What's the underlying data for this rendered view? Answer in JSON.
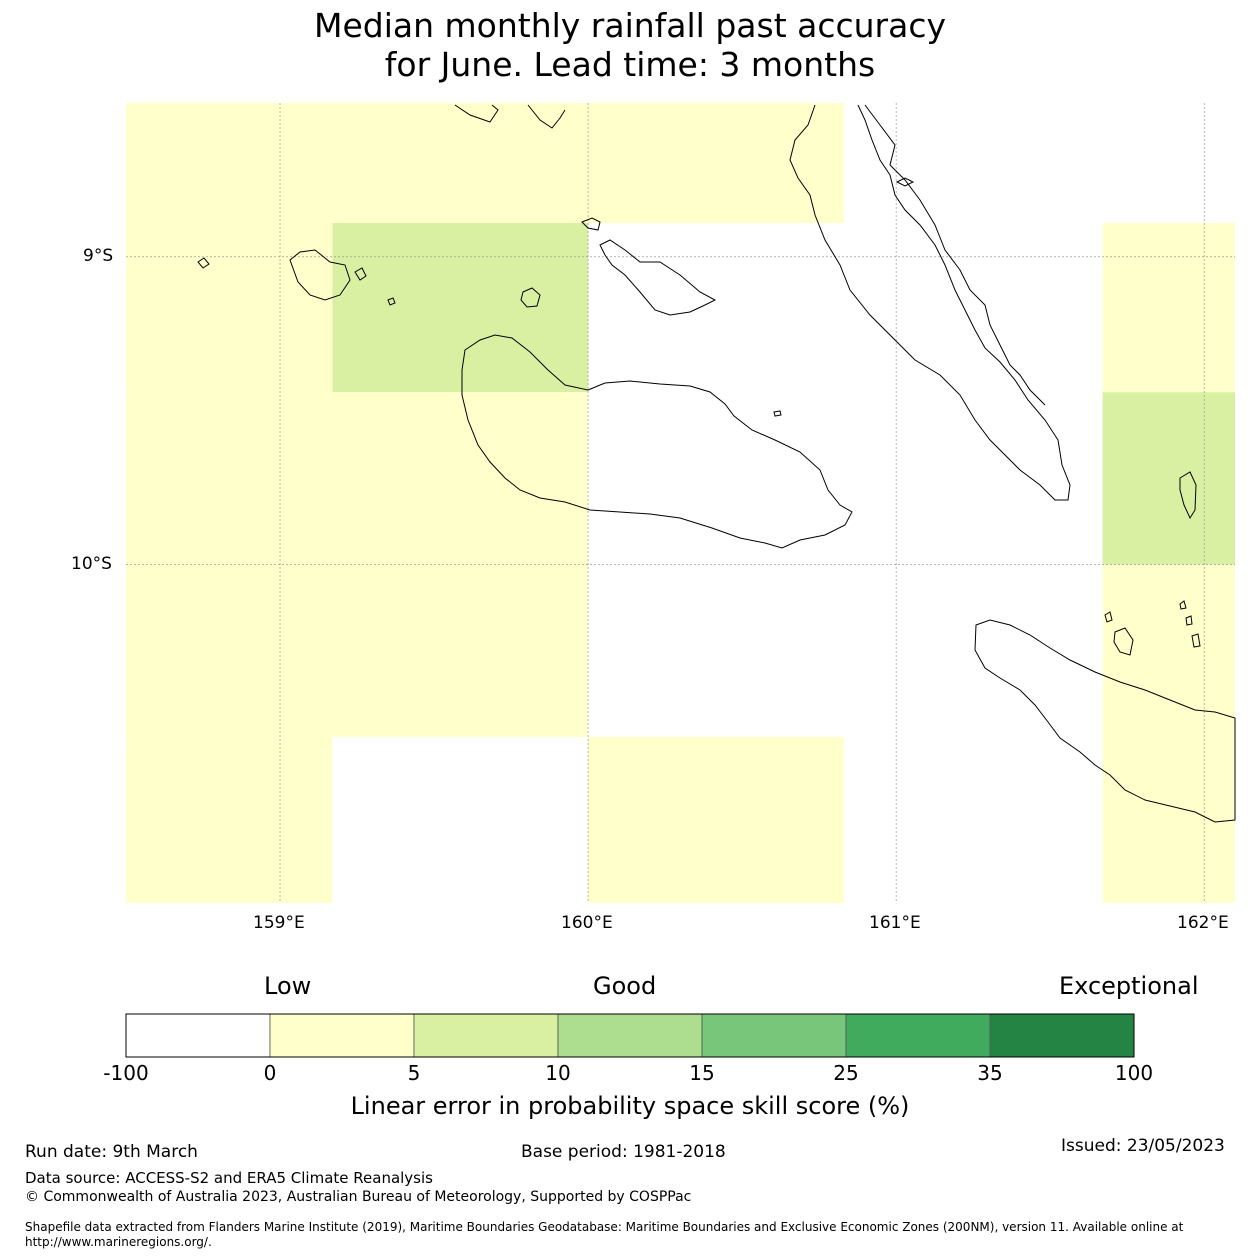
{
  "title": {
    "line1": "Median monthly rainfall past accuracy",
    "line2": "for June. Lead time: 3 months"
  },
  "map": {
    "lon_range": [
      158.5,
      162.1
    ],
    "lat_range": [
      -11.1,
      -8.5
    ],
    "grid_lons": [
      159,
      160,
      161,
      162
    ],
    "grid_lats": [
      -9,
      -10
    ],
    "lon_labels": [
      "159°E",
      "160°E",
      "161°E",
      "162°E"
    ],
    "lat_labels": [
      "9°S",
      "10°S"
    ],
    "cells": [
      {
        "lon0": 158.5,
        "lon1": 160.83,
        "lat0": -8.89,
        "lat1": -8.5,
        "value": 2
      },
      {
        "lon0": 158.5,
        "lon1": 159.17,
        "lat0": -9.44,
        "lat1": -8.89,
        "value": 2
      },
      {
        "lon0": 159.17,
        "lon1": 160.0,
        "lat0": -9.44,
        "lat1": -8.89,
        "value": 7
      },
      {
        "lon0": 158.5,
        "lon1": 160.0,
        "lat0": -10.56,
        "lat1": -9.44,
        "value": 2
      },
      {
        "lon0": 158.5,
        "lon1": 159.17,
        "lat0": -11.1,
        "lat1": -10.56,
        "value": 2
      },
      {
        "lon0": 160.0,
        "lon1": 160.83,
        "lat0": -11.1,
        "lat1": -10.56,
        "value": 2
      },
      {
        "lon0": 161.67,
        "lon1": 162.1,
        "lat0": -9.44,
        "lat1": -8.89,
        "value": 2
      },
      {
        "lon0": 161.67,
        "lon1": 162.1,
        "lat0": -10.0,
        "lat1": -9.44,
        "value": 7
      },
      {
        "lon0": 161.67,
        "lon1": 162.1,
        "lat0": -11.1,
        "lat1": -10.0,
        "value": 2
      }
    ],
    "coastline_color": "#000000"
  },
  "legend": {
    "categories": [
      "Low",
      "Good",
      "Exceptional"
    ],
    "bounds": [
      "-100",
      "0",
      "5",
      "10",
      "15",
      "25",
      "35",
      "100"
    ],
    "colors": [
      "#ffffff",
      "#ffffcc",
      "#d9f0a3",
      "#addd8e",
      "#78c679",
      "#41ab5d",
      "#238443"
    ],
    "label": "Linear error in probability space skill score (%)"
  },
  "footer": {
    "run_date": "Run date: 9th March",
    "base_period": "Base period: 1981-2018",
    "issued": "Issued: 23/05/2023",
    "data_source": "Data source: ACCESS-S2 and ERA5 Climate Reanalysis",
    "copyright": "© Commonwealth of Australia 2023, Australian Bureau of Meteorology, Supported by COSPPac",
    "shapefile": "Shapefile data extracted from Flanders Marine Institute (2019), Maritime Boundaries Geodatabase: Maritime Boundaries and Exclusive Economic Zones (200NM), version 11. Available online at http://www.marineregions.org/."
  }
}
